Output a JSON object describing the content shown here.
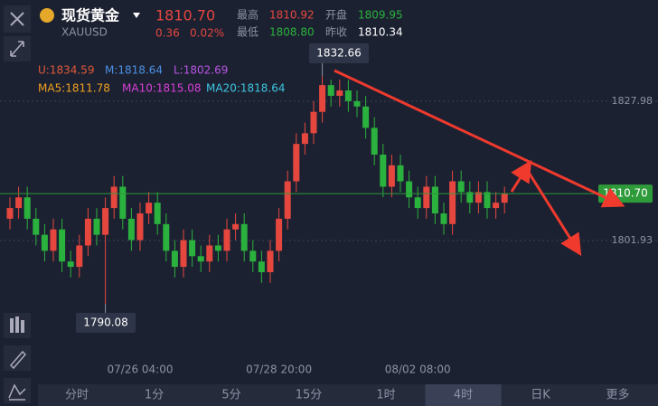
{
  "header": {
    "name": "现货黄金",
    "symbol": "XAUUSD",
    "price": "1810.70",
    "change": "0.36",
    "change_pct": "0.02%",
    "high_label": "最高",
    "high": "1810.92",
    "open_label": "开盘",
    "open": "1809.95",
    "low_label": "最低",
    "low": "1808.80",
    "prev_label": "昨收",
    "prev": "1810.34"
  },
  "indicators": [
    {
      "text": "U:1834.59",
      "color": "#e0583a"
    },
    {
      "text": "M:1818.64",
      "color": "#4a90e2"
    },
    {
      "text": "L:1802.69",
      "color": "#b855e5"
    },
    {
      "text": "MA5:1811.78",
      "color": "#f0a020"
    },
    {
      "text": "MA10:1815.08",
      "color": "#d83fd8"
    },
    {
      "text": "MA20:1818.64",
      "color": "#3ec6e0"
    }
  ],
  "chart_data": {
    "type": "candlestick",
    "categories": [
      null,
      null,
      null,
      null,
      null,
      null,
      null,
      null,
      null,
      null,
      null,
      null,
      null,
      null,
      null,
      "07/26 04:00",
      null,
      null,
      null,
      null,
      null,
      null,
      null,
      null,
      null,
      null,
      null,
      null,
      null,
      null,
      null,
      "07/28 20:00",
      null,
      null,
      null,
      null,
      null,
      null,
      null,
      null,
      null,
      null,
      null,
      null,
      null,
      null,
      null,
      "08/02 08:00",
      null,
      null,
      null,
      null,
      null,
      null,
      null,
      null,
      null,
      null
    ],
    "open": [
      1806,
      1808,
      1810,
      1806,
      1803,
      1800,
      1804,
      1798,
      1797,
      1801,
      1806,
      1803,
      1808,
      1812,
      1806,
      1802,
      1807,
      1809,
      1805,
      1800,
      1797,
      1802,
      1799,
      1798,
      1801,
      1800,
      1804,
      1805,
      1800,
      1798,
      1796,
      1800,
      1806,
      1813,
      1820,
      1822,
      1826,
      1831,
      1829,
      1830,
      1828,
      1827,
      1823,
      1818,
      1812,
      1816,
      1813,
      1810,
      1808,
      1812,
      1807,
      1805,
      1813,
      1811,
      1809,
      1811,
      1808,
      1809
    ],
    "high": [
      1810,
      1812,
      1812,
      1808,
      1805,
      1806,
      1806,
      1800,
      1803,
      1808,
      1808,
      1810,
      1814,
      1814,
      1808,
      1809,
      1811,
      1811,
      1807,
      1802,
      1804,
      1804,
      1801,
      1803,
      1803,
      1806,
      1807,
      1807,
      1802,
      1800,
      1802,
      1808,
      1815,
      1822,
      1824,
      1828,
      1832.66,
      1832,
      1832,
      1832,
      1830,
      1829,
      1825,
      1820,
      1818,
      1818,
      1815,
      1812,
      1814,
      1814,
      1809,
      1815,
      1815,
      1813,
      1813,
      1813,
      1811,
      1812
    ],
    "low": [
      1804,
      1806,
      1804,
      1801,
      1798,
      1798,
      1796,
      1795,
      1795,
      1799,
      1801,
      1790.08,
      1806,
      1804,
      1800,
      1800,
      1805,
      1803,
      1798,
      1795,
      1795,
      1797,
      1796,
      1796,
      1798,
      1798,
      1802,
      1798,
      1796,
      1794,
      1794,
      1798,
      1804,
      1811,
      1818,
      1820,
      1824,
      1827,
      1827,
      1826,
      1825,
      1821,
      1816,
      1810,
      1810,
      1811,
      1808,
      1806,
      1806,
      1805,
      1803,
      1803,
      1809,
      1807,
      1807,
      1806,
      1806,
      1807
    ],
    "close": [
      1808,
      1810,
      1806,
      1803,
      1800,
      1804,
      1798,
      1797,
      1801,
      1806,
      1803,
      1808,
      1812,
      1806,
      1802,
      1807,
      1809,
      1805,
      1800,
      1797,
      1802,
      1799,
      1798,
      1801,
      1800,
      1804,
      1805,
      1800,
      1798,
      1796,
      1800,
      1806,
      1813,
      1820,
      1822,
      1826,
      1831,
      1829,
      1830,
      1828,
      1827,
      1823,
      1818,
      1812,
      1816,
      1813,
      1810,
      1808,
      1812,
      1807,
      1805,
      1813,
      1811,
      1809,
      1811,
      1808,
      1809,
      1810.7
    ],
    "up_color": "#e5473f",
    "down_color": "#2bb13d",
    "ylim": [
      1780.1,
      1840.16
    ],
    "yticks": [
      1827.98,
      1801.93
    ],
    "max_label": {
      "value": 1832.66,
      "label": "1832.66"
    },
    "min_label": {
      "value": 1790.08,
      "label": "1790.08"
    },
    "last_price": {
      "value": 1810.7,
      "label": "1810.70"
    }
  },
  "tabs": [
    "分时",
    "1分",
    "5分",
    "15分",
    "1时",
    "4时",
    "日K",
    "更多"
  ]
}
